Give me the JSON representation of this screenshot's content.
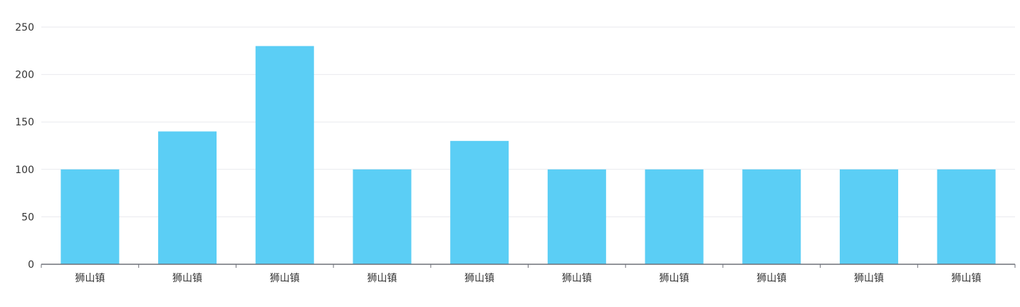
{
  "chart_data": {
    "type": "bar",
    "title": "",
    "xlabel": "",
    "ylabel": "",
    "categories": [
      "狮山镇",
      "狮山镇",
      "狮山镇",
      "狮山镇",
      "狮山镇",
      "狮山镇",
      "狮山镇",
      "狮山镇",
      "狮山镇",
      "狮山镇"
    ],
    "values": [
      100,
      140,
      230,
      100,
      130,
      100,
      100,
      100,
      100,
      100
    ],
    "ylim": [
      0,
      250
    ],
    "yticks": [
      "0",
      "50",
      "100",
      "150",
      "200",
      "250"
    ],
    "grid": true,
    "legend": "none",
    "colors": {
      "bar": "#5bcef5",
      "grid": "#e9eaee",
      "axis": "#6e7079",
      "label": "#333333"
    }
  }
}
